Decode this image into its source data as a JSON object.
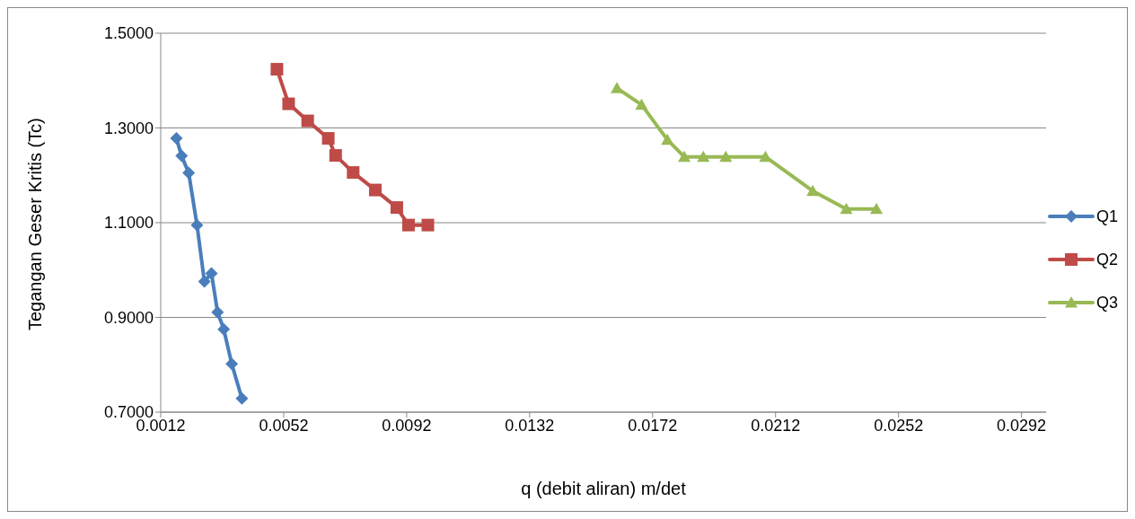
{
  "chart_data": {
    "type": "line",
    "xlabel": "q (debit aliran) m/det",
    "ylabel": "Tegangan Geser Kritis (Tc)",
    "xlim": [
      0.0012,
      0.03
    ],
    "xticks": [
      0.0012,
      0.0052,
      0.0092,
      0.0132,
      0.0172,
      0.0212,
      0.0252,
      0.0292
    ],
    "ylim": [
      0.7,
      1.5
    ],
    "yticks": [
      {
        "value": 0.7,
        "label": "0.7000"
      },
      {
        "value": 0.9,
        "label": "0.9000"
      },
      {
        "value": 1.1,
        "label": "1.1000"
      },
      {
        "value": 1.3,
        "label": "1.3000"
      },
      {
        "value": 1.5,
        "label": "1.5000"
      }
    ],
    "grid": "y",
    "legend": "right",
    "line_style": "solid",
    "series": [
      {
        "name": "Q1",
        "color": "#4a7ebb",
        "marker": "diamond",
        "x": [
          0.00171,
          0.00188,
          0.00211,
          0.00238,
          0.00262,
          0.00285,
          0.00305,
          0.00325,
          0.00351,
          0.00384
        ],
        "values": [
          1.278,
          1.241,
          1.205,
          1.095,
          0.976,
          0.993,
          0.911,
          0.875,
          0.802,
          0.729
        ]
      },
      {
        "name": "Q2",
        "color": "#be4b48",
        "marker": "square",
        "x": [
          0.00498,
          0.00536,
          0.00598,
          0.00665,
          0.00689,
          0.00746,
          0.00818,
          0.00888,
          0.00926,
          0.00989
        ],
        "values": [
          1.424,
          1.351,
          1.315,
          1.278,
          1.242,
          1.206,
          1.169,
          1.132,
          1.095,
          1.095
        ]
      },
      {
        "name": "Q3",
        "color": "#98b954",
        "marker": "triangle",
        "x": [
          0.01604,
          0.01684,
          0.01768,
          0.01823,
          0.01885,
          0.01958,
          0.02087,
          0.02241,
          0.0235,
          0.02448
        ],
        "values": [
          1.384,
          1.349,
          1.275,
          1.239,
          1.239,
          1.239,
          1.239,
          1.167,
          1.129,
          1.129
        ]
      }
    ]
  }
}
